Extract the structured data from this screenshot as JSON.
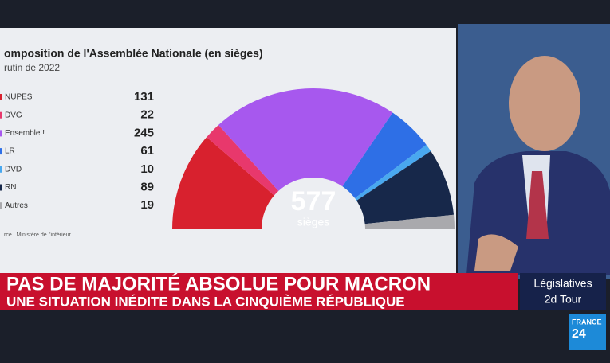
{
  "chart_data": {
    "type": "hemicycle",
    "title": "omposition de l'Assemblée Nationale (en sièges)",
    "subtitle": "rutin de 2022",
    "source": "rce : Ministère de l'intérieur",
    "categories": [
      "NUPES",
      "DVG",
      "Ensemble !",
      "LR",
      "DVD",
      "RN",
      "Autres"
    ],
    "values": [
      131,
      22,
      245,
      61,
      10,
      89,
      19
    ],
    "colors": [
      "#d8212e",
      "#e8386c",
      "#a758ee",
      "#2e6fe6",
      "#49a8ef",
      "#17284a",
      "#a9a9ad"
    ],
    "center_value": 577,
    "center_label": "sièges"
  },
  "banner": {
    "headline": "PAS DE MAJORITÉ ABSOLUE POUR MACRON",
    "subheadline": "UNE SITUATION INÉDITE DANS LA CINQUIÈME RÉPUBLIQUE",
    "tag_line1": "Législatives",
    "tag_line2": "2d Tour",
    "logo_top": "FRANCE",
    "logo_bottom": "24"
  }
}
